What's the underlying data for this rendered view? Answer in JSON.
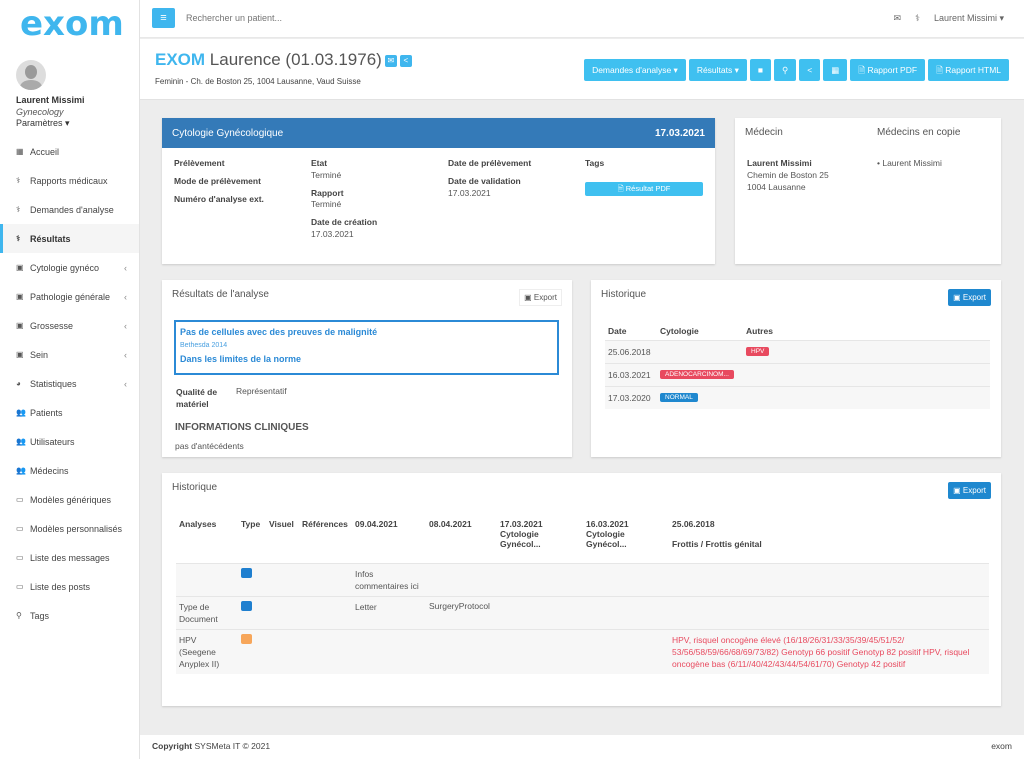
{
  "app": {
    "logo": "exom"
  },
  "user": {
    "name": "Laurent Missimi",
    "specialty": "Gynecology",
    "settings": "Paramètres ▾"
  },
  "sidebar": {
    "items": [
      {
        "label": "Accueil",
        "icon": "▦"
      },
      {
        "label": "Rapports médicaux",
        "icon": "⚕"
      },
      {
        "label": "Demandes d'analyse",
        "icon": "⚕"
      },
      {
        "label": "Résultats",
        "icon": "⚕",
        "active": true
      },
      {
        "label": "Cytologie gynéco",
        "icon": "▣",
        "chevron": "‹"
      },
      {
        "label": "Pathologie générale",
        "icon": "▣",
        "chevron": "‹"
      },
      {
        "label": "Grossesse",
        "icon": "▣",
        "chevron": "‹"
      },
      {
        "label": "Sein",
        "icon": "▣",
        "chevron": "‹"
      },
      {
        "label": "Statistiques",
        "icon": "◕",
        "chevron": "‹"
      },
      {
        "label": "Patients",
        "icon": "👥"
      },
      {
        "label": "Utilisateurs",
        "icon": "👥"
      },
      {
        "label": "Médecins",
        "icon": "👥"
      },
      {
        "label": "Modèles génériques",
        "icon": "▭"
      },
      {
        "label": "Modèles personnalisés",
        "icon": "▭"
      },
      {
        "label": "Liste des messages",
        "icon": "▭"
      },
      {
        "label": "Liste des posts",
        "icon": "▭"
      },
      {
        "label": "Tags",
        "icon": "⚲"
      }
    ]
  },
  "topbar": {
    "search_placeholder": "Rechercher un patient...",
    "user": "Laurent Missimi ▾",
    "mail_icon": "✉",
    "steth_icon": "⚕"
  },
  "patient": {
    "lastname": "EXOM",
    "name": "Laurence (01.03.1976)",
    "info": "Feminin - Ch. de Boston 25, 1004 Lausanne, Vaud Suisse"
  },
  "header_buttons": {
    "demandes": "Demandes d'analyse ▾",
    "resultats": "Résultats ▾",
    "video": "■",
    "location": "⚲",
    "share": "<",
    "calendar": "▦",
    "pdf": "🗎 Rapport PDF",
    "html": "🗎 Rapport HTML"
  },
  "analysis": {
    "title": "Cytologie Gynécologique",
    "date": "17.03.2021",
    "prelevement": "Prélèvement",
    "mode": "Mode de prélèvement",
    "numero": "Numéro d'analyse ext.",
    "etat_label": "Etat",
    "etat": "Terminé",
    "rapport_label": "Rapport",
    "rapport": "Terminé",
    "creation_label": "Date de création",
    "creation": "17.03.2021",
    "date_prel_label": "Date de prélèvement",
    "validation_label": "Date de validation",
    "validation": "17.03.2021",
    "tags_label": "Tags",
    "pdf_button": "🗎 Résultat PDF"
  },
  "doctor": {
    "title": "Médecin",
    "copy_title": "Médecins en copie",
    "name": "Laurent Missimi",
    "street": "Chemin de Boston 25",
    "city": "1004 Lausanne",
    "copy": "• Laurent Missimi"
  },
  "results": {
    "title": "Résultats de l'analyse",
    "export": "▣ Export",
    "line1": "Pas de cellules avec des preuves de malignité",
    "ref": "Bethesda 2014",
    "line2": "Dans les limites de la norme",
    "quality_label": "Qualité de matériel",
    "quality": "Représentatif",
    "clinical_title": "INFORMATIONS CLINIQUES",
    "clinical": "pas d'antécédents"
  },
  "history": {
    "title": "Historique",
    "export": "▣ Export",
    "headers": [
      "Date",
      "Cytologie",
      "Autres"
    ],
    "rows": [
      {
        "date": "25.06.2018",
        "cyto": "",
        "other": "HPV"
      },
      {
        "date": "16.03.2021",
        "cyto": "ADENOCARCINOM...",
        "other": ""
      },
      {
        "date": "17.03.2020",
        "cyto": "NORMAL",
        "other": ""
      }
    ],
    "colors": {
      "red": "#e84a5f",
      "blue": "#1f88cf"
    }
  },
  "history2": {
    "title": "Historique",
    "export": "▣ Export",
    "headers": [
      "Analyses",
      "Type",
      "Visuel",
      "Références",
      "09.04.2021",
      "08.04.2021",
      "17.03.2021\nCytologie Gynécol...",
      "16.03.2021\nCytologie Gynécol...",
      "25.06.2018\n\nFrottis / Frottis génital"
    ],
    "rows": [
      {
        "analysis": "",
        "color": "#1f7fcf",
        "c1": "Infos commentaires ici",
        "c2": "",
        "c5": ""
      },
      {
        "analysis": "Type de Document",
        "color": "#1f7fcf",
        "c1": "Letter",
        "c2": "SurgeryProtocol",
        "c5": ""
      },
      {
        "analysis": "HPV (Seegene Anyplex II)",
        "color": "#f7a65a",
        "c1": "",
        "c2": "",
        "c5": "HPV, risquel oncogène élevé (16/18/26/31/33/35/39/45/51/52/ 53/56/58/59/66/68/69/73/82) Genotyp 66 positif Genotyp 82 positif HPV, risquel oncogène bas (6/11//40/42/43/44/54/61/70) Genotyp 42 positif"
      }
    ]
  },
  "footer": {
    "copyright": "Copyright",
    "company": "SYSMeta IT © 2021",
    "brand": "exom"
  }
}
